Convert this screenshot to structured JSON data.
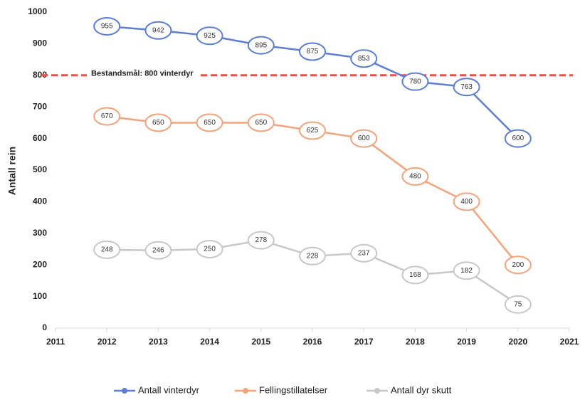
{
  "chart_data": {
    "type": "line",
    "x": [
      2012,
      2013,
      2014,
      2015,
      2016,
      2017,
      2018,
      2019,
      2020
    ],
    "xlim": [
      2011,
      2021
    ],
    "xticks": [
      2011,
      2012,
      2013,
      2014,
      2015,
      2016,
      2017,
      2018,
      2019,
      2020,
      2021
    ],
    "ylim": [
      0,
      1000
    ],
    "yticks": [
      0,
      100,
      200,
      300,
      400,
      500,
      600,
      700,
      800,
      900,
      1000
    ],
    "ylabel": "Antall rein",
    "reference": {
      "value": 800,
      "label": "Bestandsmål: 800 vinterdyr",
      "color": "#e8514a"
    },
    "legend": "bottom",
    "series": [
      {
        "name": "Antall vinterdyr",
        "color": "#5b7fd6",
        "values": [
          955,
          942,
          925,
          895,
          875,
          853,
          780,
          763,
          600
        ]
      },
      {
        "name": "Fellingstillatelser",
        "color": "#f4a37a",
        "values": [
          670,
          650,
          650,
          650,
          625,
          600,
          480,
          400,
          200
        ]
      },
      {
        "name": "Antall dyr skutt",
        "color": "#c8c8c8",
        "values": [
          248,
          246,
          250,
          278,
          228,
          237,
          168,
          182,
          75
        ]
      }
    ]
  }
}
